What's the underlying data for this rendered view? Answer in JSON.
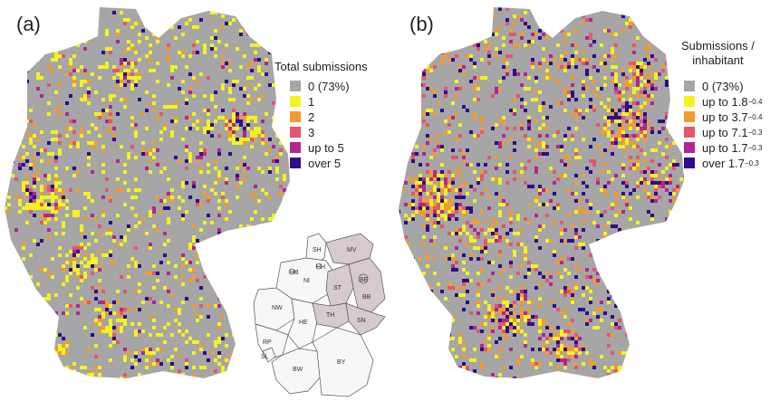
{
  "panels": {
    "a": {
      "label": "(a)",
      "legend_title": "Total submissions",
      "legend": [
        {
          "label": "0 (73%)",
          "color": "#a6a6a6"
        },
        {
          "label": "1",
          "color": "#f3f31f"
        },
        {
          "label": "2",
          "color": "#f39b2e"
        },
        {
          "label": "3",
          "color": "#e4566b"
        },
        {
          "label": "up to 5",
          "color": "#b22690"
        },
        {
          "label": "over 5",
          "color": "#2d0d8c"
        }
      ]
    },
    "b": {
      "label": "(b)",
      "legend_title_line1": "Submissions /",
      "legend_title_line2": "inhabitant",
      "legend": [
        {
          "label": "0 (73%)",
          "color": "#a6a6a6"
        },
        {
          "label": "up to 1.8",
          "exp": "−0.4",
          "color": "#f3f31f"
        },
        {
          "label": "up to 3.7",
          "exp": "−0.4",
          "color": "#f39b2e"
        },
        {
          "label": "up to 7.1",
          "exp": "−0.3",
          "color": "#e4566b"
        },
        {
          "label": "up to 1.7",
          "exp": "−0.3",
          "color": "#b22690"
        },
        {
          "label": "over 1.7",
          "exp": "−0.3",
          "color": "#2d0d8c"
        }
      ]
    }
  },
  "inset": {
    "states": [
      "SH",
      "HH",
      "MV",
      "HB",
      "NI",
      "BE",
      "BB",
      "NW",
      "ST",
      "SN",
      "TH",
      "HE",
      "RP",
      "SL",
      "BW",
      "BY"
    ],
    "highlight_color": "#d7c9d0",
    "plain_color": "#f7f7f7"
  }
}
